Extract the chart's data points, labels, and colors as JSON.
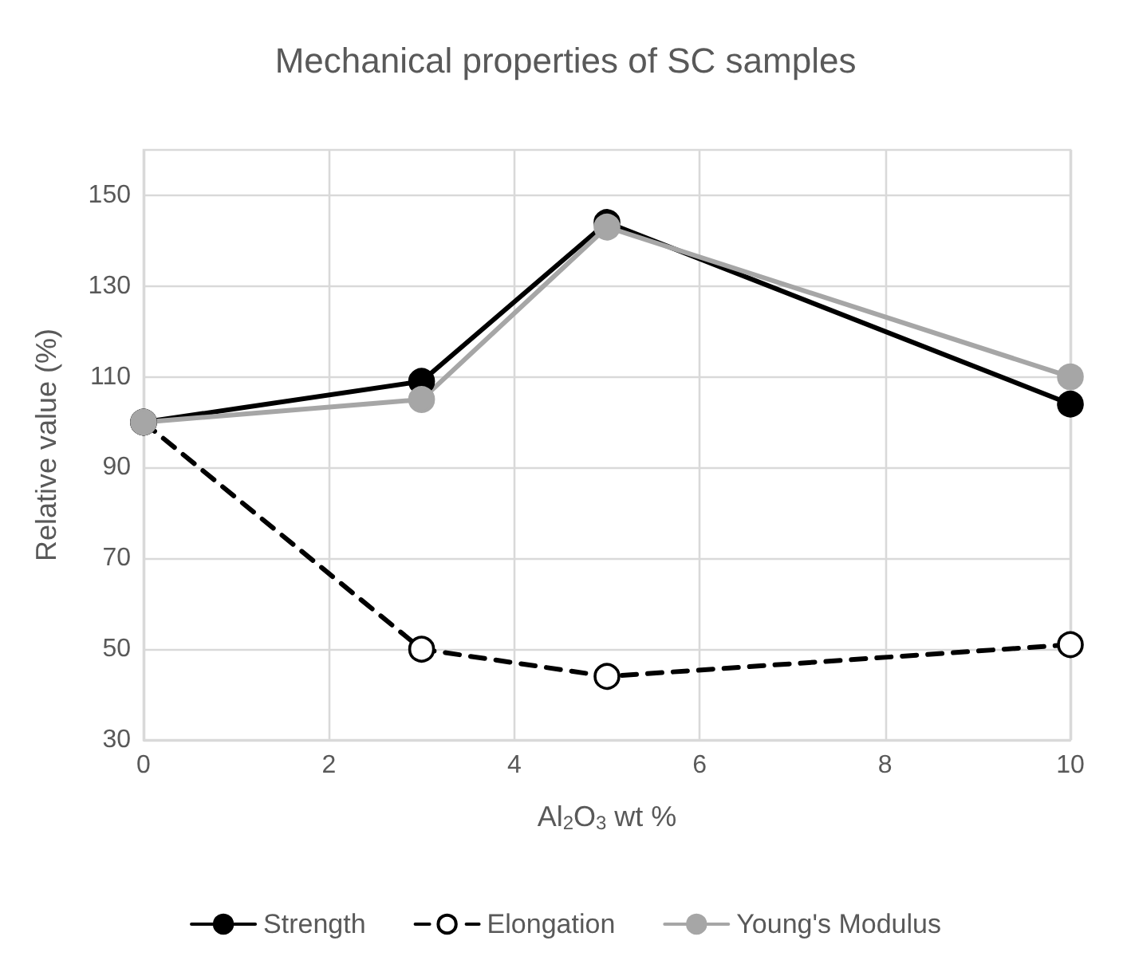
{
  "chart_data": {
    "type": "line",
    "title": "Mechanical properties of SC samples",
    "xlabel": "Al$_{2}$O$_{3}$ wt %",
    "ylabel": "Relative value (%)",
    "x": [
      0,
      3,
      5,
      10
    ],
    "series": [
      {
        "name": "Strength",
        "color": "#000000",
        "values": [
          100,
          109,
          144,
          104
        ],
        "marker": "circle",
        "line_style": "solid"
      },
      {
        "name": "Elongation",
        "color": "#000000",
        "values": [
          100,
          50,
          44,
          51
        ],
        "marker": "circle",
        "line_style": "dashed"
      },
      {
        "name": "Young's Modulus",
        "color": "#a6a6a6",
        "values": [
          100,
          105,
          143,
          110
        ],
        "marker": "circle",
        "line_style": "solid"
      }
    ],
    "xlim": [
      0,
      10
    ],
    "xticks": [
      0,
      2,
      4,
      6,
      8,
      10
    ],
    "ylim": [
      30,
      160
    ],
    "yticks": [
      30,
      50,
      70,
      90,
      110,
      130,
      150
    ],
    "grid": true,
    "legend": "bottom"
  }
}
